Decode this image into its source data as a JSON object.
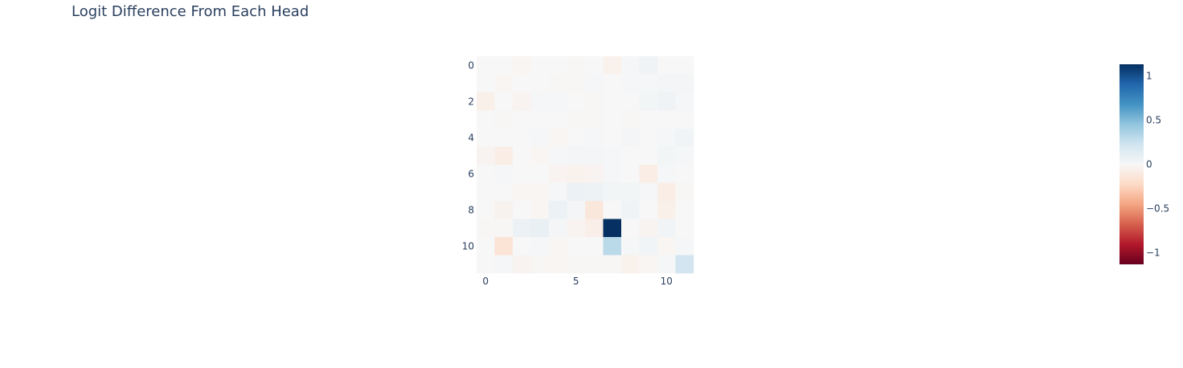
{
  "chart_data": {
    "type": "heatmap",
    "title": "Logit Difference From Each Head",
    "xlabel": "",
    "ylabel": "",
    "x_ticks": [
      "0",
      "5",
      "10"
    ],
    "x_tick_values": [
      0,
      5,
      10
    ],
    "y_ticks": [
      "0",
      "2",
      "4",
      "6",
      "8",
      "10"
    ],
    "y_tick_values": [
      0,
      2,
      4,
      6,
      8,
      10
    ],
    "colorscale_name": "RdBu",
    "colorscale": [
      "#67001f",
      "#b2182b",
      "#d6604d",
      "#f4a582",
      "#fddbc7",
      "#f7f7f7",
      "#d1e5f0",
      "#92c5de",
      "#4393c3",
      "#2166ac",
      "#053061"
    ],
    "zmin": -1.13,
    "zmax": 1.13,
    "colorbar_ticks": [
      "1",
      "0.5",
      "0",
      "−0.5",
      "−1"
    ],
    "colorbar_tick_values": [
      1,
      0.5,
      0,
      -0.5,
      -1
    ],
    "rows": 12,
    "cols": 12,
    "z": [
      [
        0.0,
        0.0,
        -0.02,
        0.0,
        0.0,
        -0.01,
        0.0,
        -0.05,
        0.01,
        0.05,
        0.0,
        0.0
      ],
      [
        0.0,
        -0.02,
        0.0,
        0.0,
        -0.01,
        -0.01,
        0.01,
        0.0,
        0.01,
        0.01,
        0.02,
        0.02
      ],
      [
        -0.06,
        0.0,
        -0.03,
        0.01,
        0.01,
        0.0,
        -0.01,
        0.0,
        0.0,
        0.03,
        0.05,
        0.01
      ],
      [
        0.0,
        -0.01,
        0.0,
        0.0,
        0.0,
        -0.01,
        -0.01,
        0.0,
        -0.01,
        0.0,
        0.0,
        0.0
      ],
      [
        0.0,
        0.0,
        0.0,
        0.01,
        -0.02,
        0.0,
        0.01,
        0.0,
        0.02,
        0.0,
        0.01,
        0.04
      ],
      [
        -0.03,
        -0.08,
        0.0,
        -0.02,
        0.01,
        0.02,
        0.02,
        0.01,
        0.0,
        0.0,
        0.03,
        0.01
      ],
      [
        0.0,
        0.01,
        0.0,
        0.0,
        -0.03,
        -0.05,
        -0.03,
        0.01,
        0.0,
        -0.08,
        0.01,
        0.0
      ],
      [
        0.0,
        0.0,
        -0.02,
        -0.02,
        0.01,
        0.07,
        0.06,
        0.03,
        0.03,
        0.01,
        -0.08,
        -0.01
      ],
      [
        0.0,
        -0.04,
        0.0,
        -0.02,
        0.07,
        0.02,
        -0.13,
        0.0,
        0.05,
        0.0,
        -0.06,
        0.0
      ],
      [
        -0.01,
        -0.01,
        0.07,
        0.09,
        0.02,
        -0.03,
        -0.07,
        1.13,
        0.0,
        -0.03,
        0.04,
        0.0
      ],
      [
        0.0,
        -0.16,
        0.0,
        0.01,
        -0.02,
        0.0,
        0.0,
        0.31,
        0.01,
        0.04,
        -0.02,
        0.01
      ],
      [
        0.0,
        0.01,
        -0.03,
        -0.01,
        -0.02,
        -0.01,
        -0.01,
        -0.01,
        -0.05,
        -0.02,
        0.01,
        0.22
      ]
    ]
  }
}
